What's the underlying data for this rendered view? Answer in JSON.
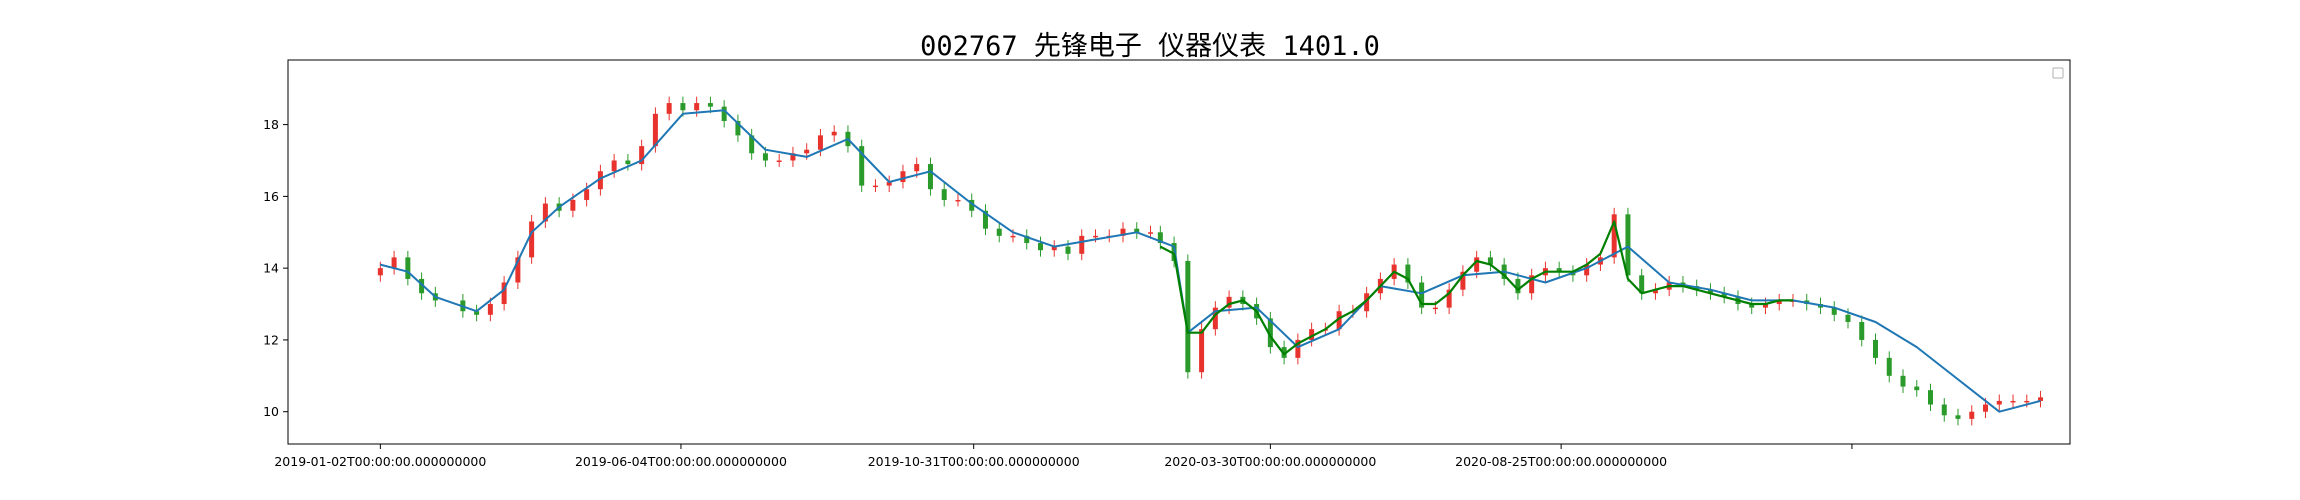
{
  "chart_data": {
    "type": "candlestick",
    "title": "002767 先锋电子 仪器仪表 1401.0",
    "xlabel": "",
    "ylabel": "",
    "ylim": [
      9.1,
      19.8
    ],
    "yticks": [
      10,
      12,
      14,
      16,
      18
    ],
    "ytick_labels": [
      "10",
      "12",
      "14",
      "16",
      "18"
    ],
    "xlim": [
      "2018-11-16",
      "2021-05-11"
    ],
    "xticks": [
      "2019-01-02",
      "2019-06-04",
      "2019-10-31",
      "2020-03-30",
      "2020-08-25",
      "2021-01-20"
    ],
    "xtick_labels": [
      "2019-01-02T00:00:00.000000000",
      "2019-06-04T00:00:00.000000000",
      "2019-10-31T00:00:00.000000000",
      "2020-03-30T00:00:00.000000000",
      "2020-08-25T00:00:00.000000000",
      ""
    ],
    "grid": false,
    "legend": {
      "location": "upper right",
      "entries": []
    },
    "colors": {
      "up": "#e8322d",
      "down": "#2a9a2a",
      "ma_short": "#1f77b4",
      "ma_long": "#008000"
    },
    "series": [
      {
        "style": "candles",
        "comment": "approximate daily closes (yuan) read off the chart; open/high/low shown as candles around each close",
        "x": [
          "2019-01-02",
          "2019-01-09",
          "2019-01-16",
          "2019-01-23",
          "2019-01-30",
          "2019-02-13",
          "2019-02-20",
          "2019-02-27",
          "2019-03-06",
          "2019-03-13",
          "2019-03-20",
          "2019-03-27",
          "2019-04-03",
          "2019-04-10",
          "2019-04-17",
          "2019-04-24",
          "2019-05-01",
          "2019-05-08",
          "2019-05-15",
          "2019-05-22",
          "2019-05-29",
          "2019-06-05",
          "2019-06-12",
          "2019-06-19",
          "2019-06-26",
          "2019-07-03",
          "2019-07-10",
          "2019-07-17",
          "2019-07-24",
          "2019-07-31",
          "2019-08-07",
          "2019-08-14",
          "2019-08-21",
          "2019-08-28",
          "2019-09-04",
          "2019-09-11",
          "2019-09-18",
          "2019-09-25",
          "2019-10-02",
          "2019-10-09",
          "2019-10-16",
          "2019-10-23",
          "2019-10-30",
          "2019-11-06",
          "2019-11-13",
          "2019-11-20",
          "2019-11-27",
          "2019-12-04",
          "2019-12-11",
          "2019-12-18",
          "2019-12-25",
          "2020-01-01",
          "2020-01-08",
          "2020-01-15",
          "2020-01-22",
          "2020-01-29",
          "2020-02-03",
          "2020-02-10",
          "2020-02-17",
          "2020-02-24",
          "2020-03-02",
          "2020-03-09",
          "2020-03-16",
          "2020-03-23",
          "2020-03-30",
          "2020-04-06",
          "2020-04-13",
          "2020-04-20",
          "2020-04-27",
          "2020-05-04",
          "2020-05-11",
          "2020-05-18",
          "2020-05-25",
          "2020-06-01",
          "2020-06-08",
          "2020-06-15",
          "2020-06-22",
          "2020-06-29",
          "2020-07-06",
          "2020-07-13",
          "2020-07-20",
          "2020-07-27",
          "2020-08-03",
          "2020-08-10",
          "2020-08-17",
          "2020-08-24",
          "2020-08-31",
          "2020-09-07",
          "2020-09-14",
          "2020-09-21",
          "2020-09-28",
          "2020-10-05",
          "2020-10-12",
          "2020-10-19",
          "2020-10-26",
          "2020-11-02",
          "2020-11-09",
          "2020-11-16",
          "2020-11-23",
          "2020-11-30",
          "2020-12-07",
          "2020-12-14",
          "2020-12-21",
          "2020-12-28",
          "2021-01-04",
          "2021-01-11",
          "2021-01-18",
          "2021-01-25",
          "2021-02-01",
          "2021-02-08",
          "2021-02-15",
          "2021-02-22",
          "2021-03-01",
          "2021-03-08",
          "2021-03-15",
          "2021-03-22",
          "2021-03-29",
          "2021-04-05",
          "2021-04-12",
          "2021-04-19",
          "2021-04-26"
        ],
        "close": [
          14.0,
          14.3,
          13.7,
          13.3,
          13.1,
          12.8,
          12.7,
          13.0,
          13.6,
          14.3,
          15.3,
          15.8,
          15.6,
          15.9,
          16.2,
          16.7,
          17.0,
          16.9,
          17.4,
          18.3,
          18.6,
          18.4,
          18.6,
          18.5,
          18.1,
          17.7,
          17.2,
          17.0,
          17.0,
          17.2,
          17.3,
          17.7,
          17.8,
          17.4,
          16.3,
          16.3,
          16.4,
          16.7,
          16.9,
          16.2,
          15.9,
          15.9,
          15.6,
          15.1,
          14.9,
          14.9,
          14.7,
          14.5,
          14.6,
          14.4,
          14.9,
          14.9,
          14.9,
          15.1,
          15.0,
          15.0,
          14.7,
          14.2,
          11.1,
          12.3,
          12.9,
          13.2,
          13.0,
          12.6,
          11.8,
          11.5,
          12.0,
          12.3,
          12.3,
          12.8,
          12.8,
          13.3,
          13.7,
          14.1,
          13.6,
          12.9,
          12.9,
          13.4,
          13.9,
          14.3,
          14.1,
          13.7,
          13.3,
          13.8,
          14.0,
          13.9,
          13.8,
          14.1,
          14.3,
          15.5,
          13.8,
          13.3,
          13.4,
          13.6,
          13.5,
          13.4,
          13.3,
          13.2,
          13.0,
          12.9,
          13.0,
          13.1,
          13.1,
          13.0,
          12.9,
          12.7,
          12.5,
          12.0,
          11.5,
          11.0,
          10.7,
          10.6,
          10.2,
          9.9,
          9.8,
          10.0,
          10.2,
          10.3,
          10.3,
          10.3,
          10.4
        ]
      },
      {
        "style": "line",
        "name": "",
        "color": "#1f77b4",
        "x": [
          "2019-01-02",
          "2019-01-16",
          "2019-01-30",
          "2019-02-20",
          "2019-03-06",
          "2019-03-20",
          "2019-04-03",
          "2019-04-24",
          "2019-05-15",
          "2019-06-05",
          "2019-06-26",
          "2019-07-17",
          "2019-08-07",
          "2019-08-28",
          "2019-09-18",
          "2019-10-09",
          "2019-10-30",
          "2019-11-20",
          "2019-12-11",
          "2020-01-01",
          "2020-01-22",
          "2020-02-10",
          "2020-02-17",
          "2020-03-02",
          "2020-03-23",
          "2020-04-13",
          "2020-05-04",
          "2020-05-25",
          "2020-06-15",
          "2020-07-06",
          "2020-07-27",
          "2020-08-17",
          "2020-09-07",
          "2020-09-28",
          "2020-10-19",
          "2020-11-09",
          "2020-11-30",
          "2020-12-21",
          "2021-01-11",
          "2021-02-01",
          "2021-02-22",
          "2021-03-15",
          "2021-04-05",
          "2021-04-26"
        ],
        "values": [
          14.1,
          13.9,
          13.2,
          12.8,
          13.4,
          15.0,
          15.7,
          16.5,
          17.0,
          18.3,
          18.4,
          17.3,
          17.1,
          17.6,
          16.4,
          16.7,
          15.8,
          15.0,
          14.6,
          14.8,
          15.0,
          14.6,
          12.2,
          12.8,
          12.9,
          11.8,
          12.3,
          13.5,
          13.3,
          13.8,
          13.9,
          13.6,
          14.0,
          14.6,
          13.6,
          13.4,
          13.1,
          13.1,
          12.9,
          12.5,
          11.8,
          10.9,
          10.0,
          10.3
        ]
      },
      {
        "style": "line",
        "name": "",
        "color": "#008000",
        "x": [
          "2020-02-03",
          "2020-02-10",
          "2020-02-17",
          "2020-02-24",
          "2020-03-02",
          "2020-03-09",
          "2020-03-16",
          "2020-03-23",
          "2020-03-30",
          "2020-04-06",
          "2020-04-13",
          "2020-04-20",
          "2020-04-27",
          "2020-05-04",
          "2020-05-11",
          "2020-05-18",
          "2020-05-25",
          "2020-06-01",
          "2020-06-08",
          "2020-06-15",
          "2020-06-22",
          "2020-06-29",
          "2020-07-06",
          "2020-07-13",
          "2020-07-20",
          "2020-07-27",
          "2020-08-03",
          "2020-08-10",
          "2020-08-17",
          "2020-08-24",
          "2020-08-31",
          "2020-09-07",
          "2020-09-14",
          "2020-09-21",
          "2020-09-28",
          "2020-10-05",
          "2020-10-12",
          "2020-10-19",
          "2020-10-26",
          "2020-11-02",
          "2020-11-09",
          "2020-11-16",
          "2020-11-23",
          "2020-11-30",
          "2020-12-07",
          "2020-12-14",
          "2020-12-21"
        ],
        "values": [
          14.6,
          14.4,
          12.2,
          12.2,
          12.7,
          13.0,
          13.1,
          12.8,
          12.1,
          11.6,
          11.9,
          12.1,
          12.3,
          12.6,
          12.8,
          13.1,
          13.5,
          13.9,
          13.7,
          13.0,
          13.0,
          13.3,
          13.8,
          14.2,
          14.1,
          13.8,
          13.4,
          13.7,
          13.9,
          13.9,
          13.9,
          14.1,
          14.4,
          15.3,
          13.7,
          13.3,
          13.4,
          13.5,
          13.5,
          13.4,
          13.3,
          13.2,
          13.1,
          13.0,
          13.0,
          13.1,
          13.1
        ]
      }
    ]
  }
}
